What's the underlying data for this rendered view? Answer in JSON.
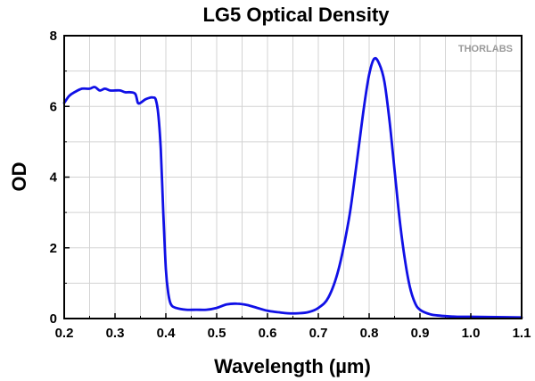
{
  "chart_data": {
    "type": "line",
    "title": "LG5 Optical Density",
    "xlabel": "Wavelength (µm)",
    "ylabel": "OD",
    "xlim": [
      0.2,
      1.1
    ],
    "ylim": [
      0,
      8
    ],
    "x_major_ticks": [
      0.2,
      0.3,
      0.4,
      0.5,
      0.6,
      0.7,
      0.8,
      0.9,
      1.0,
      1.1
    ],
    "x_tick_labels": [
      "0.2",
      "0.3",
      "0.4",
      "0.5",
      "0.6",
      "0.7",
      "0.8",
      "0.9",
      "1.0",
      "1.1"
    ],
    "y_major_ticks": [
      0,
      2,
      4,
      6,
      8
    ],
    "y_tick_labels": [
      "0",
      "2",
      "4",
      "6",
      "8"
    ],
    "grid": true,
    "series": [
      {
        "name": "LG5",
        "color": "#1010e6",
        "x": [
          0.2,
          0.21,
          0.22,
          0.235,
          0.25,
          0.26,
          0.27,
          0.28,
          0.29,
          0.3,
          0.31,
          0.32,
          0.33,
          0.34,
          0.345,
          0.35,
          0.36,
          0.37,
          0.375,
          0.38,
          0.385,
          0.39,
          0.395,
          0.4,
          0.405,
          0.41,
          0.42,
          0.44,
          0.46,
          0.48,
          0.5,
          0.52,
          0.54,
          0.56,
          0.58,
          0.6,
          0.62,
          0.64,
          0.66,
          0.68,
          0.7,
          0.72,
          0.74,
          0.76,
          0.77,
          0.78,
          0.79,
          0.8,
          0.81,
          0.82,
          0.83,
          0.84,
          0.85,
          0.86,
          0.87,
          0.88,
          0.89,
          0.9,
          0.92,
          0.94,
          0.96,
          0.98,
          1.0,
          1.05,
          1.1
        ],
        "y": [
          6.1,
          6.3,
          6.4,
          6.5,
          6.5,
          6.55,
          6.45,
          6.5,
          6.45,
          6.45,
          6.45,
          6.4,
          6.4,
          6.35,
          6.1,
          6.1,
          6.2,
          6.25,
          6.25,
          6.2,
          5.8,
          4.8,
          3.0,
          1.4,
          0.7,
          0.4,
          0.3,
          0.25,
          0.25,
          0.25,
          0.3,
          0.4,
          0.42,
          0.38,
          0.3,
          0.22,
          0.18,
          0.15,
          0.15,
          0.18,
          0.3,
          0.6,
          1.4,
          2.8,
          3.8,
          4.9,
          6.0,
          6.9,
          7.35,
          7.2,
          6.7,
          5.6,
          4.2,
          2.8,
          1.7,
          0.9,
          0.45,
          0.25,
          0.12,
          0.08,
          0.06,
          0.05,
          0.05,
          0.04,
          0.03
        ]
      }
    ],
    "annotations": [
      {
        "text": "THORLABS",
        "placement": "top-right",
        "color_main": "#999999",
        "color_accent": "#cc2222"
      }
    ]
  }
}
